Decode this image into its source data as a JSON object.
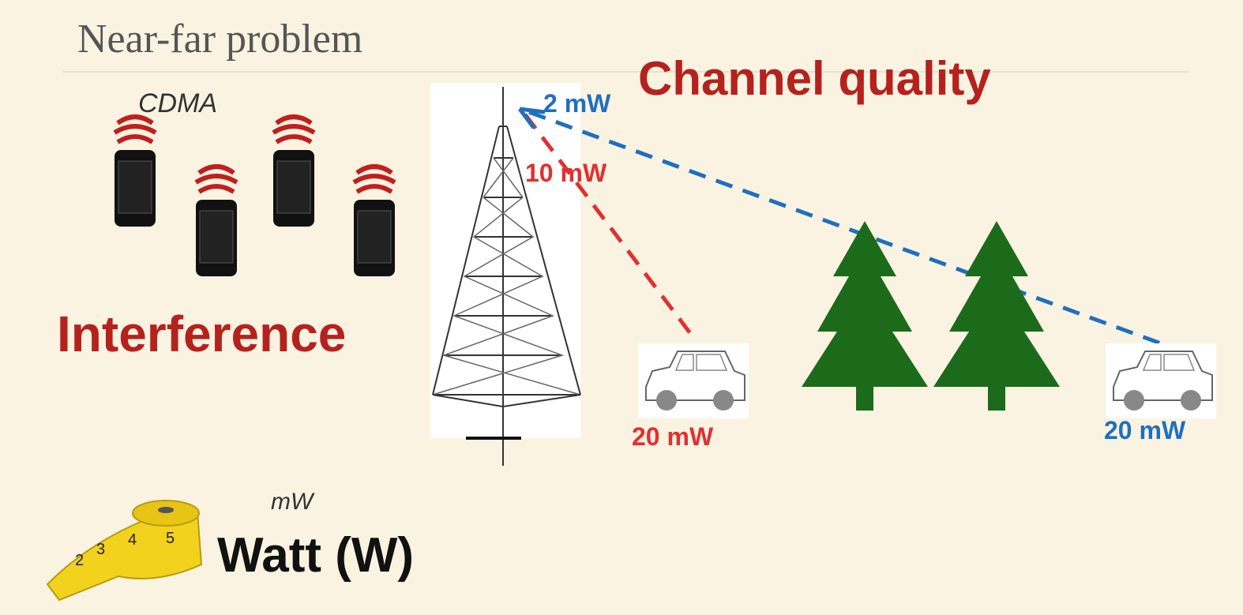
{
  "header": {
    "title": "Near-far problem"
  },
  "left": {
    "note": "CDMA",
    "label": "Interference"
  },
  "right": {
    "label": "Channel quality",
    "tower_blue": "2 mW",
    "tower_red": "10 mW",
    "car_near": "20 mW",
    "car_far": "20 mW"
  },
  "unit": {
    "note": "mW",
    "label": "Watt (W)",
    "tape": [
      "2",
      "3",
      "4",
      "5"
    ]
  }
}
